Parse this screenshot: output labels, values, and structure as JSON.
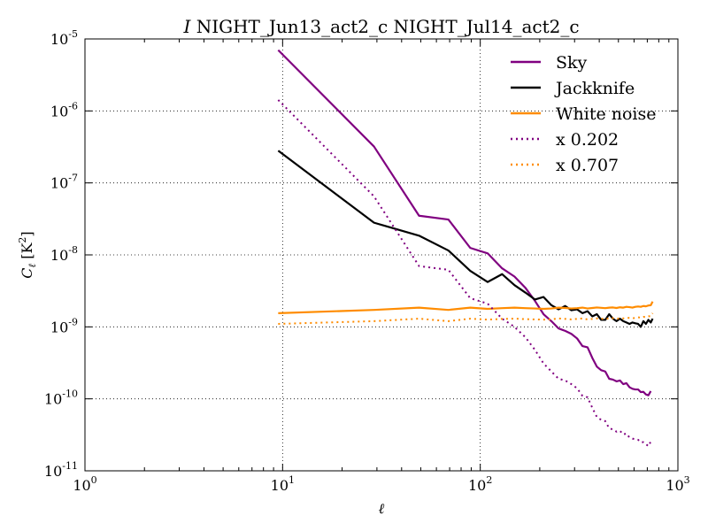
{
  "chart_data": {
    "type": "line",
    "title_italic": "I",
    "title": " NIGHT_Jun13_act2_c NIGHT_Jul14_act2_c",
    "xlabel": "ℓ",
    "ylabel": {
      "main": "C",
      "sub": "ℓ",
      "unit_open": " [K",
      "unit_sup": "2",
      "unit_close": "]"
    },
    "xscale": "log",
    "yscale": "log",
    "xlim": [
      1,
      1000
    ],
    "ylim": [
      1e-11,
      1e-05
    ],
    "grid": true,
    "legend_position": "top-right",
    "x_ticks": [
      {
        "value": 1,
        "base": "10",
        "exp": "0"
      },
      {
        "value": 10,
        "base": "10",
        "exp": "1"
      },
      {
        "value": 100,
        "base": "10",
        "exp": "2"
      },
      {
        "value": 1000,
        "base": "10",
        "exp": "3"
      }
    ],
    "y_ticks": [
      {
        "value": 1e-11,
        "base": "10",
        "exp": "-11"
      },
      {
        "value": 1e-10,
        "base": "10",
        "exp": "-10"
      },
      {
        "value": 1e-09,
        "base": "10",
        "exp": "-9"
      },
      {
        "value": 1e-08,
        "base": "10",
        "exp": "-8"
      },
      {
        "value": 1e-07,
        "base": "10",
        "exp": "-7"
      },
      {
        "value": 1e-06,
        "base": "10",
        "exp": "-6"
      },
      {
        "value": 1e-05,
        "base": "10",
        "exp": "-5"
      }
    ],
    "series": [
      {
        "name": "Sky",
        "color": "#800080",
        "style": "solid",
        "points": [
          [
            9.5,
            7e-06
          ],
          [
            29,
            3.2e-07
          ],
          [
            49,
            3.5e-08
          ],
          [
            69,
            3.1e-08
          ],
          [
            89,
            1.25e-08
          ],
          [
            109,
            1.05e-08
          ],
          [
            129,
            6.5e-09
          ],
          [
            149,
            5e-09
          ],
          [
            169,
            3.5e-09
          ],
          [
            189,
            2.3e-09
          ],
          [
            209,
            1.5e-09
          ],
          [
            229,
            1.2e-09
          ],
          [
            249,
            9.5e-10
          ],
          [
            269,
            8.8e-10
          ],
          [
            289,
            8e-10
          ],
          [
            309,
            6.9e-10
          ],
          [
            329,
            5.4e-10
          ],
          [
            349,
            5.2e-10
          ],
          [
            369,
            3.7e-10
          ],
          [
            389,
            2.8e-10
          ],
          [
            409,
            2.5e-10
          ],
          [
            429,
            2.4e-10
          ],
          [
            449,
            1.9e-10
          ],
          [
            469,
            1.85e-10
          ],
          [
            489,
            1.75e-10
          ],
          [
            509,
            1.8e-10
          ],
          [
            529,
            1.6e-10
          ],
          [
            549,
            1.65e-10
          ],
          [
            569,
            1.45e-10
          ],
          [
            589,
            1.38e-10
          ],
          [
            609,
            1.35e-10
          ],
          [
            629,
            1.35e-10
          ],
          [
            649,
            1.24e-10
          ],
          [
            669,
            1.25e-10
          ],
          [
            689,
            1.15e-10
          ],
          [
            709,
            1.12e-10
          ],
          [
            729,
            1.28e-10
          ]
        ]
      },
      {
        "name": "Jackknife",
        "color": "#000000",
        "style": "solid",
        "points": [
          [
            9.5,
            2.8e-07
          ],
          [
            29,
            2.8e-08
          ],
          [
            49,
            1.85e-08
          ],
          [
            69,
            1.15e-08
          ],
          [
            89,
            6e-09
          ],
          [
            109,
            4.2e-09
          ],
          [
            129,
            5.4e-09
          ],
          [
            149,
            3.8e-09
          ],
          [
            169,
            3e-09
          ],
          [
            189,
            2.4e-09
          ],
          [
            209,
            2.6e-09
          ],
          [
            229,
            2e-09
          ],
          [
            249,
            1.75e-09
          ],
          [
            269,
            1.95e-09
          ],
          [
            289,
            1.7e-09
          ],
          [
            309,
            1.75e-09
          ],
          [
            329,
            1.55e-09
          ],
          [
            349,
            1.65e-09
          ],
          [
            369,
            1.4e-09
          ],
          [
            389,
            1.5e-09
          ],
          [
            409,
            1.25e-09
          ],
          [
            429,
            1.25e-09
          ],
          [
            449,
            1.5e-09
          ],
          [
            469,
            1.3e-09
          ],
          [
            489,
            1.2e-09
          ],
          [
            509,
            1.3e-09
          ],
          [
            529,
            1.2e-09
          ],
          [
            549,
            1.15e-09
          ],
          [
            569,
            1.1e-09
          ],
          [
            589,
            1.15e-09
          ],
          [
            609,
            1.12e-09
          ],
          [
            629,
            1.1e-09
          ],
          [
            649,
            1e-09
          ],
          [
            669,
            1.2e-09
          ],
          [
            689,
            1.1e-09
          ],
          [
            709,
            1.25e-09
          ],
          [
            729,
            1.15e-09
          ],
          [
            745,
            1.3e-09
          ]
        ]
      },
      {
        "name": "White noise",
        "color": "#ff8c00",
        "style": "solid",
        "points": [
          [
            9.5,
            1.55e-09
          ],
          [
            29,
            1.72e-09
          ],
          [
            49,
            1.85e-09
          ],
          [
            69,
            1.72e-09
          ],
          [
            89,
            1.85e-09
          ],
          [
            109,
            1.78e-09
          ],
          [
            129,
            1.82e-09
          ],
          [
            149,
            1.85e-09
          ],
          [
            169,
            1.82e-09
          ],
          [
            189,
            1.8e-09
          ],
          [
            209,
            1.78e-09
          ],
          [
            229,
            1.8e-09
          ],
          [
            249,
            1.85e-09
          ],
          [
            269,
            1.83e-09
          ],
          [
            289,
            1.8e-09
          ],
          [
            309,
            1.82e-09
          ],
          [
            329,
            1.85e-09
          ],
          [
            349,
            1.8e-09
          ],
          [
            369,
            1.83e-09
          ],
          [
            389,
            1.86e-09
          ],
          [
            409,
            1.84e-09
          ],
          [
            429,
            1.82e-09
          ],
          [
            449,
            1.85e-09
          ],
          [
            469,
            1.86e-09
          ],
          [
            489,
            1.83e-09
          ],
          [
            509,
            1.87e-09
          ],
          [
            529,
            1.85e-09
          ],
          [
            549,
            1.9e-09
          ],
          [
            569,
            1.88e-09
          ],
          [
            589,
            1.85e-09
          ],
          [
            609,
            1.9e-09
          ],
          [
            629,
            1.92e-09
          ],
          [
            649,
            1.9e-09
          ],
          [
            669,
            1.95e-09
          ],
          [
            689,
            1.93e-09
          ],
          [
            709,
            1.98e-09
          ],
          [
            729,
            2e-09
          ],
          [
            745,
            2.25e-09
          ]
        ]
      },
      {
        "name": "x 0.202",
        "color": "#800080",
        "style": "dotted",
        "points": [
          [
            9.5,
            1.42e-06
          ],
          [
            29,
            6.5e-08
          ],
          [
            49,
            7e-09
          ],
          [
            69,
            6.2e-09
          ],
          [
            89,
            2.5e-09
          ],
          [
            109,
            2.1e-09
          ],
          [
            129,
            1.3e-09
          ],
          [
            149,
            1e-09
          ],
          [
            169,
            7.2e-10
          ],
          [
            189,
            4.8e-10
          ],
          [
            209,
            3.1e-10
          ],
          [
            229,
            2.4e-10
          ],
          [
            249,
            1.9e-10
          ],
          [
            269,
            1.8e-10
          ],
          [
            289,
            1.6e-10
          ],
          [
            309,
            1.4e-10
          ],
          [
            329,
            1.1e-10
          ],
          [
            349,
            1.05e-10
          ],
          [
            369,
            7.5e-11
          ],
          [
            389,
            5.6e-11
          ],
          [
            409,
            5.1e-11
          ],
          [
            429,
            4.9e-11
          ],
          [
            449,
            3.9e-11
          ],
          [
            469,
            3.75e-11
          ],
          [
            489,
            3.5e-11
          ],
          [
            509,
            3.6e-11
          ],
          [
            529,
            3.2e-11
          ],
          [
            549,
            3.3e-11
          ],
          [
            569,
            2.9e-11
          ],
          [
            589,
            2.8e-11
          ],
          [
            609,
            2.75e-11
          ],
          [
            629,
            2.7e-11
          ],
          [
            649,
            2.5e-11
          ],
          [
            669,
            2.5e-11
          ],
          [
            689,
            2.35e-11
          ],
          [
            709,
            2.2e-11
          ],
          [
            729,
            2.55e-11
          ]
        ]
      },
      {
        "name": "x 0.707",
        "color": "#ff8c00",
        "style": "dotted",
        "points": [
          [
            9.5,
            1.1e-09
          ],
          [
            29,
            1.2e-09
          ],
          [
            49,
            1.3e-09
          ],
          [
            69,
            1.2e-09
          ],
          [
            89,
            1.3e-09
          ],
          [
            109,
            1.26e-09
          ],
          [
            129,
            1.29e-09
          ],
          [
            149,
            1.3e-09
          ],
          [
            169,
            1.28e-09
          ],
          [
            189,
            1.27e-09
          ],
          [
            209,
            1.26e-09
          ],
          [
            229,
            1.27e-09
          ],
          [
            249,
            1.31e-09
          ],
          [
            269,
            1.29e-09
          ],
          [
            289,
            1.27e-09
          ],
          [
            309,
            1.29e-09
          ],
          [
            329,
            1.31e-09
          ],
          [
            349,
            1.27e-09
          ],
          [
            369,
            1.29e-09
          ],
          [
            389,
            1.31e-09
          ],
          [
            409,
            1.3e-09
          ],
          [
            429,
            1.29e-09
          ],
          [
            449,
            1.31e-09
          ],
          [
            469,
            1.32e-09
          ],
          [
            489,
            1.29e-09
          ],
          [
            509,
            1.32e-09
          ],
          [
            529,
            1.31e-09
          ],
          [
            549,
            1.34e-09
          ],
          [
            569,
            1.33e-09
          ],
          [
            589,
            1.31e-09
          ],
          [
            609,
            1.34e-09
          ],
          [
            629,
            1.36e-09
          ],
          [
            649,
            1.34e-09
          ],
          [
            669,
            1.38e-09
          ],
          [
            689,
            1.36e-09
          ],
          [
            709,
            1.4e-09
          ],
          [
            729,
            1.41e-09
          ],
          [
            745,
            1.55e-09
          ]
        ]
      }
    ]
  }
}
